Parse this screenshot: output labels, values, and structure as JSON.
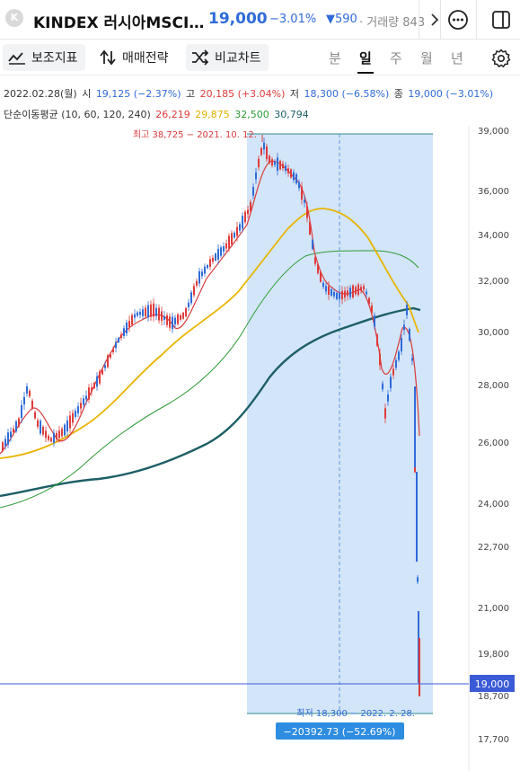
{
  "header": {
    "logo_letter": "K",
    "title": "KINDEX 러시아MSCI…",
    "price": "19,000",
    "change": "−3.01%",
    "volume_change": "▼590",
    "volume_label": "· 거래량 843",
    "icons": [
      "chevron-right-icon",
      "more-icon",
      "panel-icon"
    ]
  },
  "toolbar": {
    "indicator_label": "보조지표",
    "strategy_label": "매매전략",
    "compare_label": "비교차트",
    "periods": [
      "분",
      "일",
      "주",
      "월",
      "년"
    ],
    "active_period": "일"
  },
  "info": {
    "date": "2022.02.28(월)",
    "open_label": "시",
    "open": "19,125 (−2.37%)",
    "high_label": "고",
    "high": "20,185 (+3.04%)",
    "low_label": "저",
    "low": "18,300 (−6.58%)",
    "close_label": "종",
    "close": "19,000 (−3.01%)",
    "ma_title": "단순이동평균 (10, 60, 120, 240)",
    "ma10": "26,219",
    "ma60": "29,875",
    "ma120": "32,500",
    "ma240": "30,794"
  },
  "colors": {
    "up": "#e03b3b",
    "down": "#2f6bd8",
    "ma10": "#d83a3a",
    "ma60": "#e8b400",
    "ma120": "#2c9b35",
    "ma240": "#1d5f66",
    "highlight": "#d3e5f8"
  },
  "chart_data": {
    "type": "candlestick",
    "y_axis_ticks": [
      "39,000",
      "36,000",
      "34,000",
      "32,000",
      "30,000",
      "28,000",
      "26,000",
      "24,000",
      "22,700",
      "21,000",
      "19,800",
      "19,000",
      "18,700",
      "17,700"
    ],
    "current_price_tag": "19,000",
    "annotation_high": "최고 38,725 − 2021. 10. 12.",
    "annotation_low": "최저 18,300 − 2022. 2. 28.",
    "range_change": "−20392.73 (−52.69%)"
  }
}
